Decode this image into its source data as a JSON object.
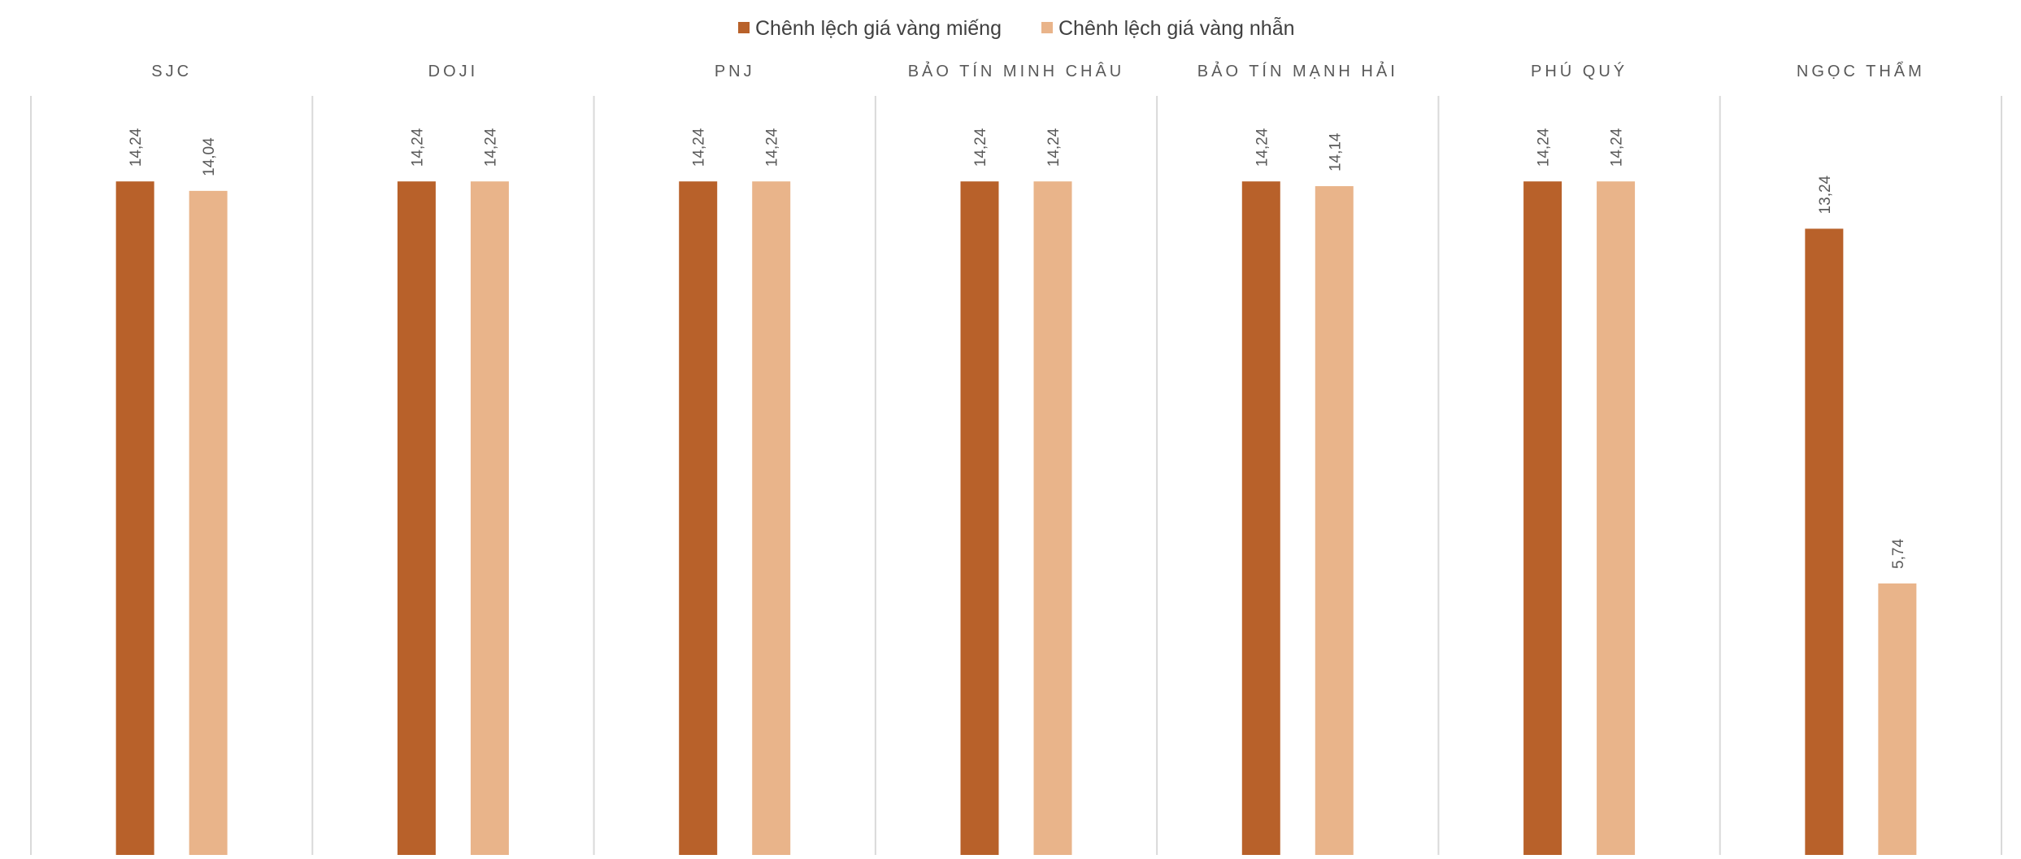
{
  "chart_data": {
    "type": "bar",
    "categories": [
      "SJC",
      "DOJI",
      "PNJ",
      "BẢO TÍN MINH CHÂU",
      "BẢO TÍN MẠNH HẢI",
      "PHÚ QUÝ",
      "NGỌC THẨM"
    ],
    "series": [
      {
        "name": "Chênh lệch giá vàng miếng",
        "color": "#B8612A",
        "values": [
          14.24,
          14.24,
          14.24,
          14.24,
          14.24,
          14.24,
          13.24
        ],
        "labels": [
          "14,24",
          "14,24",
          "14,24",
          "14,24",
          "14,24",
          "14,24",
          "13,24"
        ]
      },
      {
        "name": "Chênh lệch giá vàng nhẫn",
        "color": "#E9B48A",
        "values": [
          14.04,
          14.24,
          14.24,
          14.24,
          14.14,
          14.24,
          5.74
        ],
        "labels": [
          "14,04",
          "14,24",
          "14,24",
          "14,24",
          "14,14",
          "14,24",
          "5,74"
        ]
      }
    ],
    "legend": "top-center",
    "grid": false,
    "data_labels": true,
    "colors": {
      "divider": "#D9D9D9",
      "text": "#595959"
    }
  }
}
